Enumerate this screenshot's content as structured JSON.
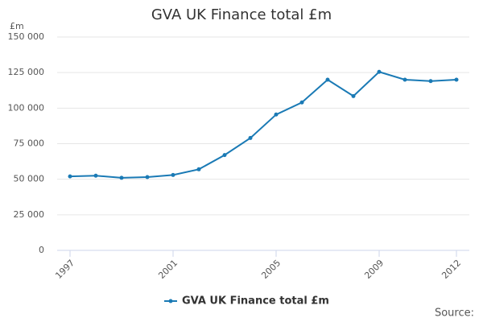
{
  "chart_data": {
    "type": "line",
    "title": "GVA UK Finance total £m",
    "y_unit_label": "£m",
    "source": "Source:",
    "x": [
      1997,
      1998,
      1999,
      2000,
      2001,
      2002,
      2003,
      2004,
      2005,
      2006,
      2007,
      2008,
      2009,
      2010,
      2011,
      2012
    ],
    "series": [
      {
        "name": "GVA UK Finance total £m",
        "color": "#1a7ab5",
        "values": [
          52000,
          52500,
          51000,
          51500,
          53000,
          57000,
          67000,
          79000,
          95500,
          104000,
          120000,
          108500,
          125500,
          120000,
          119000,
          120000
        ]
      }
    ],
    "xlim": [
      1996.5,
      2012.5
    ],
    "xticks": [
      1997,
      2001,
      2005,
      2009,
      2012
    ],
    "ylim": [
      0,
      150000
    ],
    "yticks": [
      0,
      {
        "value": 25000,
        "label": "25 000"
      },
      {
        "value": 50000,
        "label": "50 000"
      },
      {
        "value": 75000,
        "label": "75 000"
      },
      {
        "value": 100000,
        "label": "100 000"
      },
      {
        "value": 125000,
        "label": "125 000"
      },
      {
        "value": 150000,
        "label": "150 000"
      }
    ],
    "grid": true
  }
}
